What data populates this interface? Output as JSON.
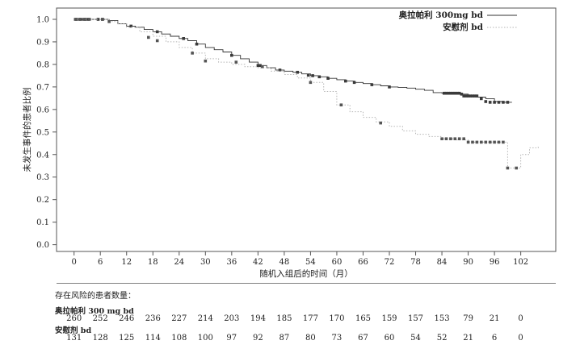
{
  "chart_data": {
    "type": "line",
    "title": "",
    "xlabel": "随机入组后的时间（月）",
    "ylabel": "未发生事件的患者比例",
    "xlim": [
      -4,
      110
    ],
    "ylim": [
      -0.03,
      1.05
    ],
    "xticks": [
      0,
      6,
      12,
      18,
      24,
      30,
      36,
      42,
      48,
      54,
      60,
      66,
      72,
      78,
      84,
      90,
      96,
      102
    ],
    "yticks": [
      "0.0",
      "0.1",
      "0.2",
      "0.3",
      "0.4",
      "0.5",
      "0.6",
      "0.7",
      "0.8",
      "0.9",
      "1.0"
    ],
    "legend_position": "top-right",
    "series": [
      {
        "name": "奥拉帕利 300mg bd",
        "color": "#333333",
        "line_style": "solid",
        "x": [
          0,
          2,
          4,
          6,
          8,
          10,
          12,
          14,
          16,
          18,
          20,
          22,
          24,
          26,
          28,
          30,
          32,
          34,
          36,
          38,
          40,
          42,
          44,
          46,
          48,
          50,
          52,
          54,
          56,
          58,
          60,
          62,
          64,
          66,
          68,
          70,
          72,
          74,
          76,
          78,
          80,
          82,
          84,
          86,
          88,
          90,
          92,
          94,
          96,
          98,
          100
        ],
        "y": [
          1.0,
          1.0,
          1.0,
          1.0,
          0.995,
          0.98,
          0.97,
          0.965,
          0.955,
          0.945,
          0.935,
          0.925,
          0.915,
          0.905,
          0.89,
          0.875,
          0.865,
          0.855,
          0.84,
          0.825,
          0.81,
          0.795,
          0.785,
          0.775,
          0.77,
          0.765,
          0.758,
          0.75,
          0.745,
          0.738,
          0.732,
          0.726,
          0.72,
          0.715,
          0.71,
          0.705,
          0.7,
          0.698,
          0.695,
          0.69,
          0.685,
          0.675,
          0.672,
          0.672,
          0.668,
          0.66,
          0.655,
          0.648,
          0.635,
          0.632,
          0.632
        ],
        "censor_x": [
          0.5,
          1.5,
          2.5,
          3.2,
          5.5,
          6.5,
          13,
          19,
          25,
          28,
          36,
          42,
          42.5,
          47,
          51,
          53.5,
          54.5,
          56,
          58,
          62,
          64,
          68,
          72,
          84.5,
          85,
          85.5,
          86,
          86.5,
          87,
          87.5,
          88,
          88.5,
          89,
          89.5,
          90,
          90.5,
          91,
          91.5,
          92,
          93,
          94,
          95,
          96,
          97,
          98,
          99
        ],
        "censor_y": [
          1.0,
          1.0,
          1.0,
          1.0,
          1.0,
          1.0,
          0.97,
          0.945,
          0.915,
          0.89,
          0.84,
          0.795,
          0.795,
          0.775,
          0.765,
          0.752,
          0.75,
          0.745,
          0.738,
          0.726,
          0.72,
          0.71,
          0.7,
          0.672,
          0.672,
          0.672,
          0.672,
          0.672,
          0.672,
          0.672,
          0.672,
          0.668,
          0.66,
          0.66,
          0.66,
          0.66,
          0.66,
          0.66,
          0.66,
          0.648,
          0.635,
          0.632,
          0.632,
          0.632,
          0.632,
          0.632
        ]
      },
      {
        "name": "安慰剂 bd",
        "color": "#b5b5b5",
        "line_style": "dotted",
        "x": [
          0,
          3,
          6,
          8,
          10,
          12,
          15,
          18,
          21,
          24,
          27,
          30,
          33,
          36,
          39,
          42,
          45,
          48,
          51,
          54,
          57,
          60,
          63,
          66,
          69,
          72,
          75,
          78,
          81,
          84,
          87,
          90,
          93,
          96,
          98,
          99,
          100,
          102,
          104,
          106
        ],
        "y": [
          1.0,
          1.0,
          1.0,
          0.99,
          0.98,
          0.965,
          0.945,
          0.925,
          0.9,
          0.875,
          0.85,
          0.825,
          0.81,
          0.8,
          0.79,
          0.785,
          0.77,
          0.755,
          0.74,
          0.72,
          0.68,
          0.62,
          0.59,
          0.565,
          0.545,
          0.525,
          0.505,
          0.49,
          0.48,
          0.47,
          0.465,
          0.455,
          0.455,
          0.455,
          0.455,
          0.34,
          0.34,
          0.4,
          0.43,
          0.44
        ],
        "censor_x": [
          0.3,
          1.2,
          2.2,
          3.5,
          6.5,
          8,
          17,
          19,
          27,
          30,
          37,
          43,
          54,
          61,
          70,
          84,
          85,
          86,
          87,
          88,
          89,
          90,
          91,
          92,
          93,
          94,
          95,
          96,
          97,
          98,
          99,
          101
        ],
        "censor_y": [
          1.0,
          1.0,
          1.0,
          1.0,
          1.0,
          0.99,
          0.92,
          0.905,
          0.85,
          0.815,
          0.81,
          0.79,
          0.72,
          0.62,
          0.54,
          0.47,
          0.47,
          0.47,
          0.47,
          0.47,
          0.47,
          0.455,
          0.455,
          0.455,
          0.455,
          0.455,
          0.455,
          0.455,
          0.455,
          0.455,
          0.34,
          0.34
        ]
      }
    ],
    "risk_table": {
      "title": "存在风险的患者数量：",
      "time_points": [
        0,
        6,
        12,
        18,
        24,
        30,
        36,
        42,
        48,
        54,
        60,
        66,
        72,
        78,
        84,
        90,
        96,
        102
      ],
      "groups": [
        {
          "name": "奥拉帕利 300 mg bd",
          "counts": [
            "260",
            "252",
            "246",
            "236",
            "227",
            "214",
            "203",
            "194",
            "185",
            "177",
            "170",
            "165",
            "159",
            "157",
            "153",
            "79",
            "21",
            "0"
          ]
        },
        {
          "name": "安慰剂 bd",
          "counts": [
            "131",
            "128",
            "125",
            "114",
            "108",
            "100",
            "97",
            "92",
            "87",
            "80",
            "73",
            "67",
            "60",
            "54",
            "52",
            "21",
            "6",
            "0"
          ]
        }
      ]
    }
  }
}
